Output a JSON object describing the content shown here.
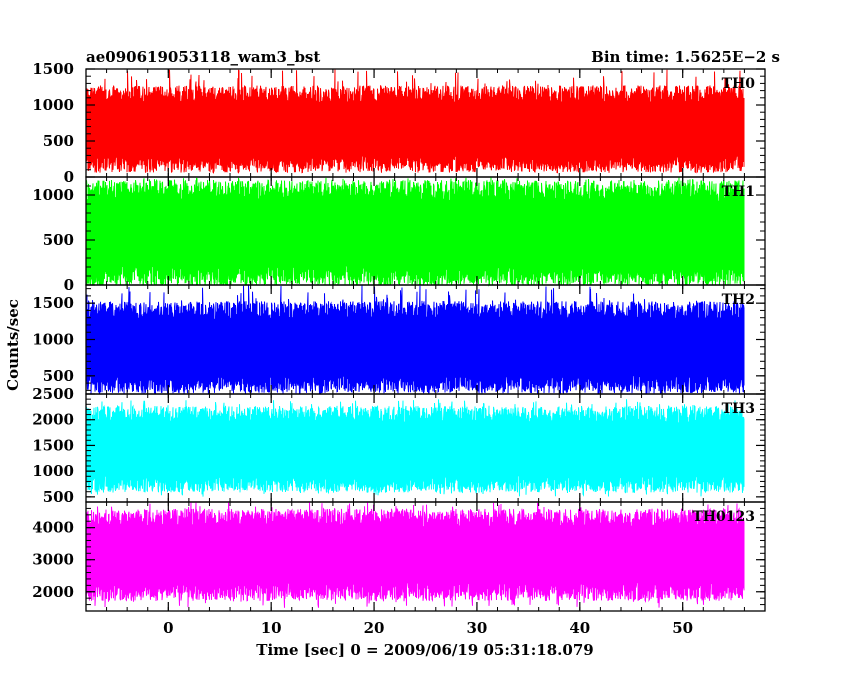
{
  "header": {
    "left": "ae090619053118_wam3_bst",
    "right": "Bin time: 1.5625E−2 s"
  },
  "axes": {
    "ylabel": "Counts/sec",
    "xlabel": "Time [sec] 0 = 2009/06/19 05:31:18.079"
  },
  "chart_data": [
    {
      "type": "line",
      "label": "TH0",
      "color": "#ff0000",
      "xlim": [
        -8,
        58
      ],
      "ylim": [
        0,
        1500
      ],
      "yticks": [
        0,
        500,
        1000,
        1500
      ],
      "xticks": [
        0,
        10,
        20,
        30,
        40,
        50
      ],
      "x_range": [
        -8,
        56
      ],
      "bin_time": 0.015625,
      "series": [
        {
          "name": "TH0",
          "mean": 650,
          "band": [
            180,
            1150
          ],
          "min": 110,
          "max": 1500
        }
      ]
    },
    {
      "type": "line",
      "label": "TH1",
      "color": "#00ff00",
      "xlim": [
        -8,
        58
      ],
      "ylim": [
        0,
        1200
      ],
      "yticks": [
        0,
        500,
        1000
      ],
      "xticks": [
        0,
        10,
        20,
        30,
        40,
        50
      ],
      "x_range": [
        -8,
        56
      ],
      "bin_time": 0.015625,
      "series": [
        {
          "name": "TH1",
          "mean": 560,
          "band": [
            100,
            1050
          ],
          "min": 20,
          "max": 1200
        }
      ]
    },
    {
      "type": "line",
      "label": "TH2",
      "color": "#0000ff",
      "xlim": [
        -8,
        58
      ],
      "ylim": [
        250,
        1750
      ],
      "yticks": [
        500,
        1000,
        1500
      ],
      "xticks": [
        0,
        10,
        20,
        30,
        40,
        50
      ],
      "x_range": [
        -8,
        56
      ],
      "bin_time": 0.015625,
      "series": [
        {
          "name": "TH2",
          "mean": 850,
          "band": [
            380,
            1400
          ],
          "min": 280,
          "max": 1750
        }
      ]
    },
    {
      "type": "line",
      "label": "TH3",
      "color": "#00ffff",
      "xlim": [
        -8,
        58
      ],
      "ylim": [
        400,
        2500
      ],
      "yticks": [
        500,
        1000,
        1500,
        2000,
        2500
      ],
      "xticks": [
        0,
        10,
        20,
        30,
        40,
        50
      ],
      "x_range": [
        -8,
        56
      ],
      "bin_time": 0.015625,
      "series": [
        {
          "name": "TH3",
          "mean": 1400,
          "band": [
            750,
            2100
          ],
          "min": 500,
          "max": 2400
        }
      ]
    },
    {
      "type": "line",
      "label": "TH0123",
      "color": "#ff00ff",
      "xlim": [
        -8,
        58
      ],
      "ylim": [
        1400,
        4800
      ],
      "yticks": [
        2000,
        3000,
        4000
      ],
      "xticks": [
        0,
        10,
        20,
        30,
        40,
        50
      ],
      "x_range": [
        -8,
        56
      ],
      "bin_time": 0.015625,
      "series": [
        {
          "name": "TH0123",
          "mean": 3200,
          "band": [
            2000,
            4300
          ],
          "min": 1500,
          "max": 4800
        }
      ]
    }
  ]
}
